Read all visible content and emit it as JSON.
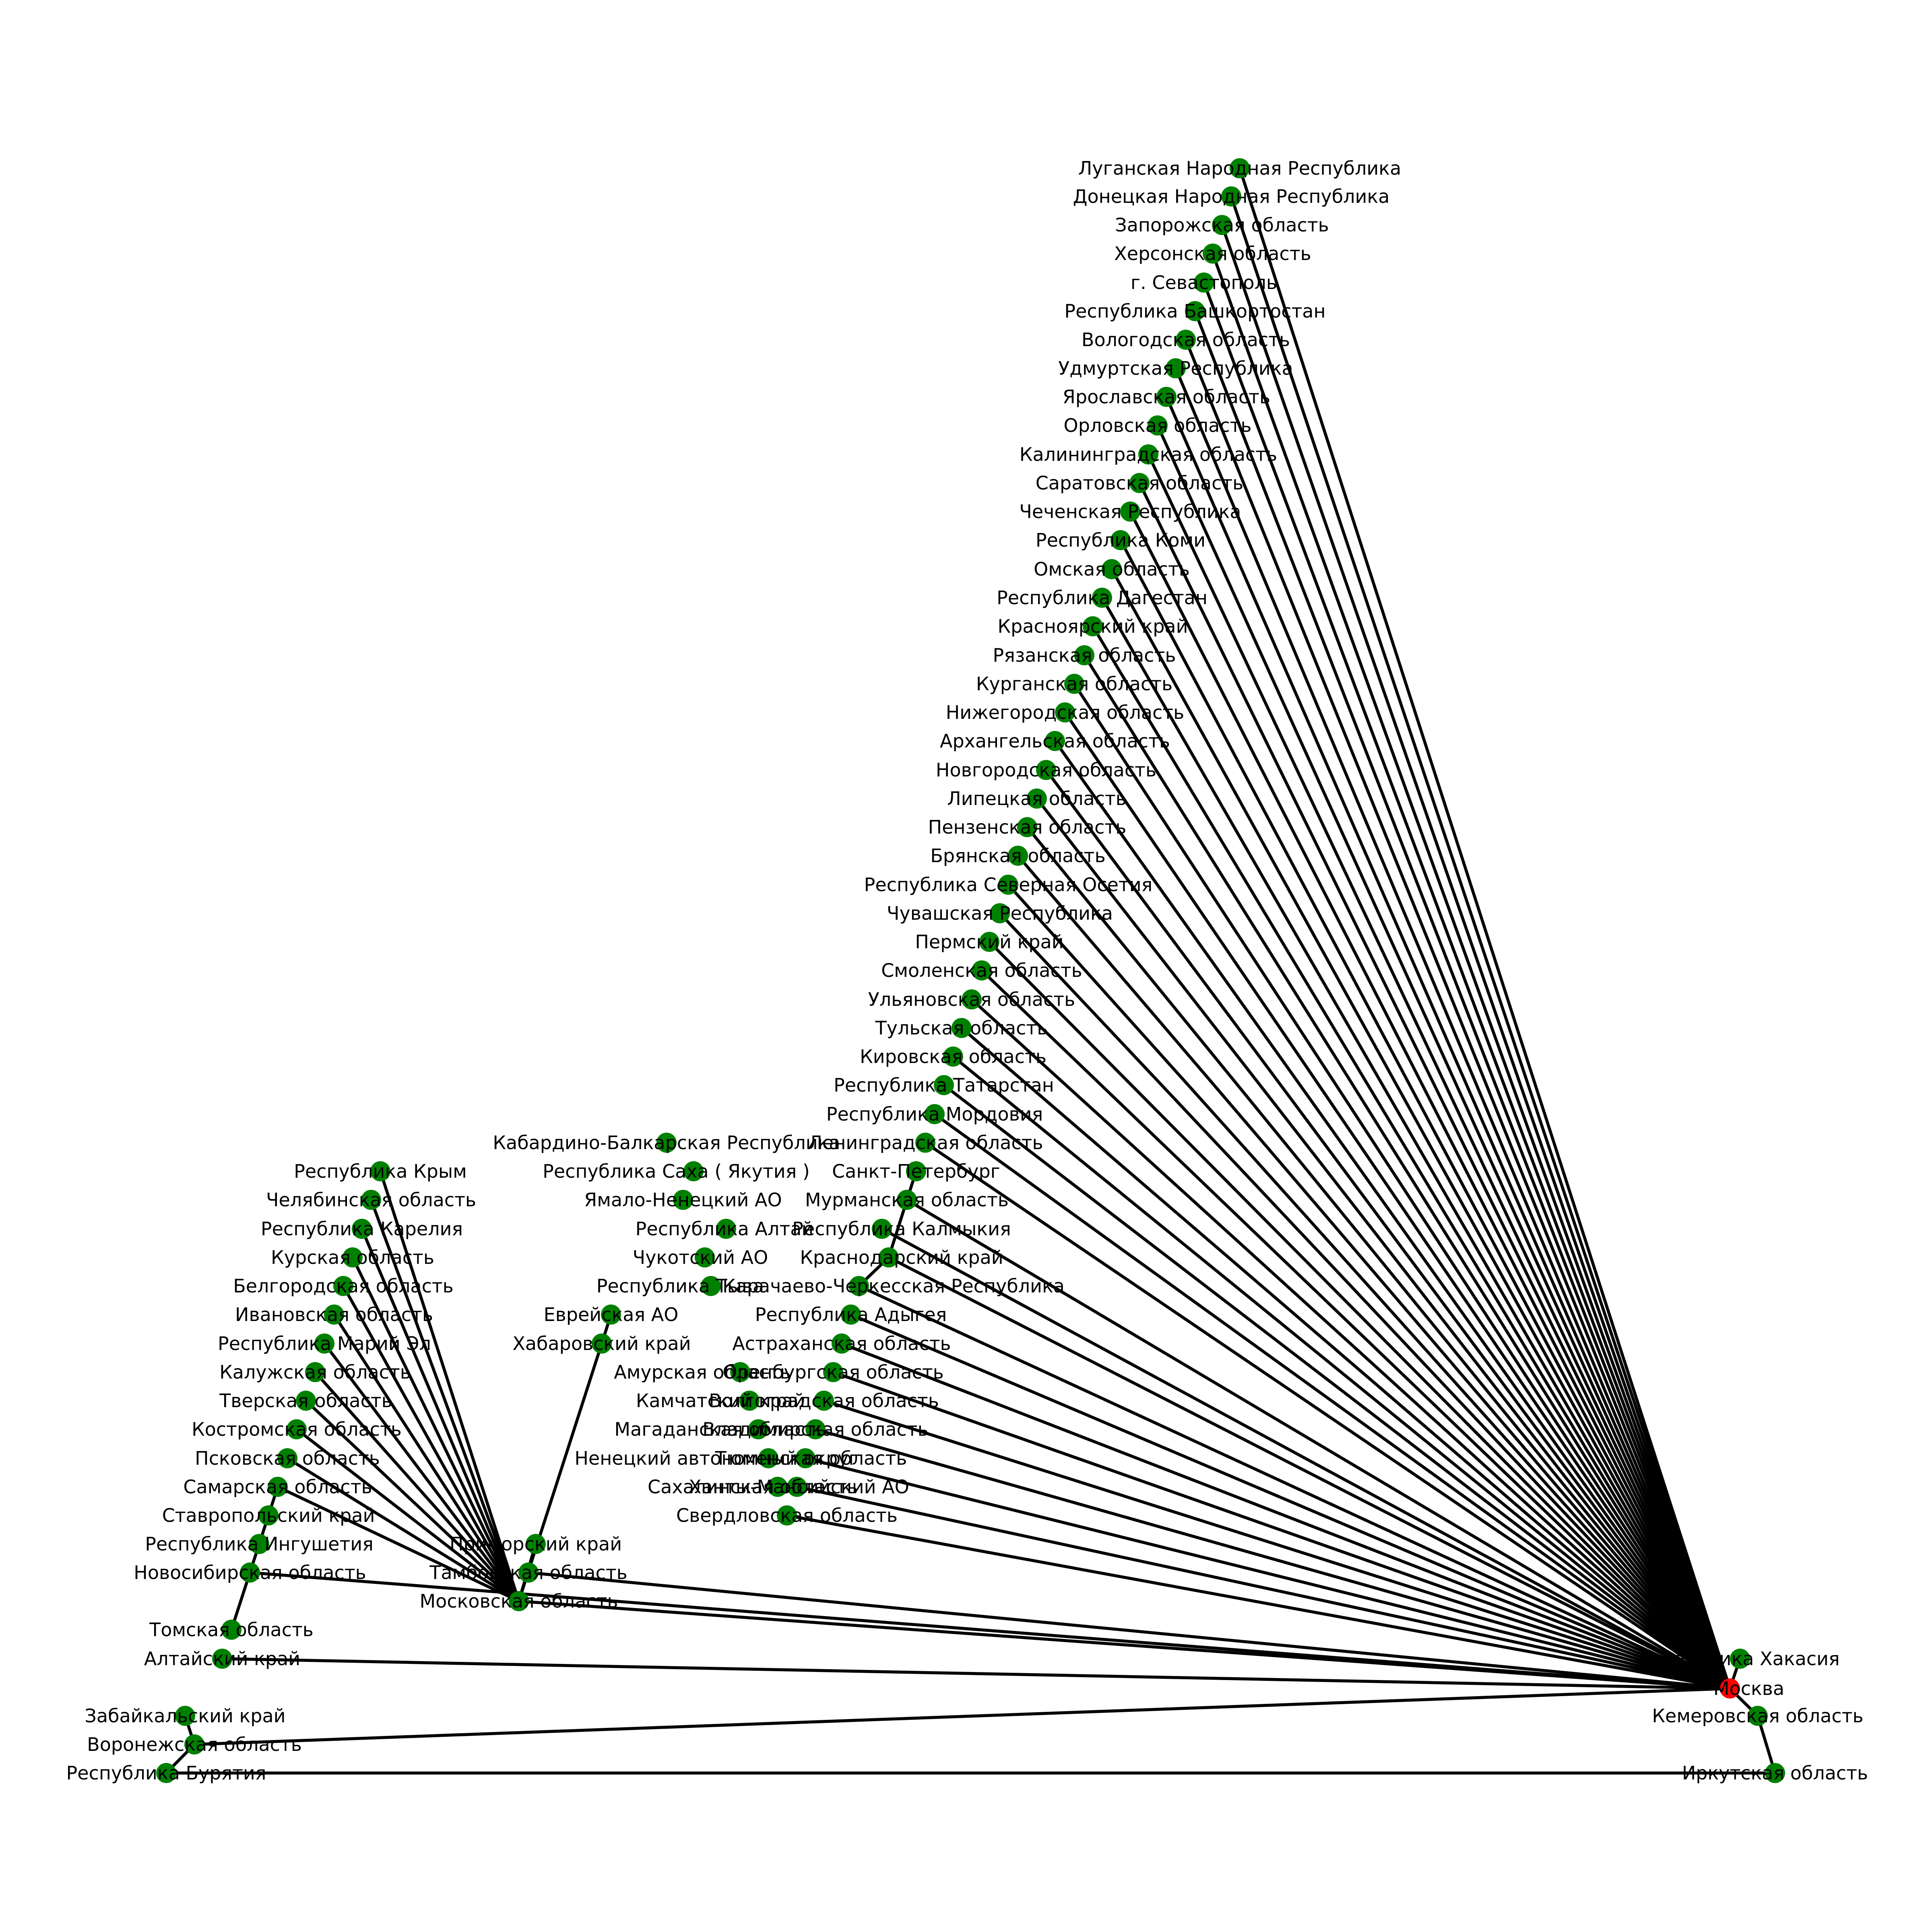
{
  "colors": {
    "root_node": "#ff0000",
    "node": "#008000",
    "edge": "#000000",
    "label": "#000000"
  },
  "graph": {
    "root": "Москва",
    "nodes": [
      {
        "id": "Москва",
        "label": "Москва",
        "root": true
      },
      {
        "id": "Луганская Народная Республика",
        "label": "Луганская Народная Республика"
      },
      {
        "id": "Донецкая Народная Республика",
        "label": "Донецкая Народная Республика"
      },
      {
        "id": "Запорожская область",
        "label": "Запорожская область"
      },
      {
        "id": "Херсонская область",
        "label": "Херсонская область"
      },
      {
        "id": "г. Севастополь",
        "label": "г. Севастополь"
      },
      {
        "id": "Республика Башкортостан",
        "label": "Республика Башкортостан"
      },
      {
        "id": "Вологодская область",
        "label": "Вологодская область"
      },
      {
        "id": "Удмуртская Республика",
        "label": "Удмуртская Республика"
      },
      {
        "id": "Ярославская область",
        "label": "Ярославская область"
      },
      {
        "id": "Орловская область",
        "label": "Орловская область"
      },
      {
        "id": "Калининградская область",
        "label": "Калининградская область"
      },
      {
        "id": "Саратовская область",
        "label": "Саратовская область"
      },
      {
        "id": "Чеченская Республика",
        "label": "Чеченская Республика"
      },
      {
        "id": "Республика Коми",
        "label": "Республика Коми"
      },
      {
        "id": "Омская область",
        "label": "Омская область"
      },
      {
        "id": "Республика Дагестан",
        "label": "Республика Дагестан"
      },
      {
        "id": "Красноярский край",
        "label": "Красноярский край"
      },
      {
        "id": "Рязанская область",
        "label": "Рязанская область"
      },
      {
        "id": "Курганская область",
        "label": "Курганская область"
      },
      {
        "id": "Нижегородская область",
        "label": "Нижегородская область"
      },
      {
        "id": "Архангельская область",
        "label": "Архангельская область"
      },
      {
        "id": "Новгородская область",
        "label": "Новгородская область"
      },
      {
        "id": "Липецкая область",
        "label": "Липецкая область"
      },
      {
        "id": "Пензенская область",
        "label": "Пензенская область"
      },
      {
        "id": "Брянская область",
        "label": "Брянская область"
      },
      {
        "id": "Республика Северная Осетия",
        "label": "Республика Северная Осетия"
      },
      {
        "id": "Чувашская Республика",
        "label": "Чувашская Республика"
      },
      {
        "id": "Пермский край",
        "label": "Пермский край"
      },
      {
        "id": "Смоленская область",
        "label": "Смоленская область"
      },
      {
        "id": "Ульяновская область",
        "label": "Ульяновская область"
      },
      {
        "id": "Тульская область",
        "label": "Тульская область"
      },
      {
        "id": "Кировская область",
        "label": "Кировская область"
      },
      {
        "id": "Республика Татарстан",
        "label": "Республика Татарстан"
      },
      {
        "id": "Республика Мордовия",
        "label": "Республика Мордовия"
      },
      {
        "id": "Ленинградская область",
        "label": "Ленинградская область"
      },
      {
        "id": "Санкт-Петербург",
        "label": "Санкт-Петербург"
      },
      {
        "id": "Мурманская область",
        "label": "Мурманская область"
      },
      {
        "id": "Республика Калмыкия",
        "label": "Республика Калмыкия"
      },
      {
        "id": "Краснодарский край",
        "label": "Краснодарский край"
      },
      {
        "id": "Карачаево-Черкесская Республика",
        "label": "Карачаево-Черкесская Республика"
      },
      {
        "id": "Республика Адыгея",
        "label": "Республика Адыгея"
      },
      {
        "id": "Астраханская область",
        "label": "Астраханская область"
      },
      {
        "id": "Оренбургская область",
        "label": "Оренбургская область"
      },
      {
        "id": "Волгоградская область",
        "label": "Волгоградская область"
      },
      {
        "id": "Владимирская область",
        "label": "Владимирская область"
      },
      {
        "id": "Тюменская область",
        "label": "Тюменская область"
      },
      {
        "id": "Ханты-Мансийский АО",
        "label": "Ханты-Мансийский АО"
      },
      {
        "id": "Свердловская область",
        "label": "Свердловская область"
      },
      {
        "id": "Кабардино-Балкарская Республика",
        "label": "Кабардино-Балкарская Республика"
      },
      {
        "id": "Республика Саха ( Якутия )",
        "label": "Республика Саха ( Якутия )"
      },
      {
        "id": "Ямало-Ненецкий АО",
        "label": "Ямало-Ненецкий АО"
      },
      {
        "id": "Республика Алтай",
        "label": "Республика Алтай"
      },
      {
        "id": "Чукотский АО",
        "label": "Чукотский АО"
      },
      {
        "id": "Республика Тыва",
        "label": "Республика Тыва"
      },
      {
        "id": "Еврейская АО",
        "label": "Еврейская АО"
      },
      {
        "id": "Хабаровский край",
        "label": "Хабаровский край"
      },
      {
        "id": "Амурская область",
        "label": "Амурская область"
      },
      {
        "id": "Камчатский край",
        "label": "Камчатский край"
      },
      {
        "id": "Магаданская область",
        "label": "Магаданская область"
      },
      {
        "id": "Ненецкий автономный округ",
        "label": "Ненецкий автономный округ"
      },
      {
        "id": "Сахалинская область",
        "label": "Сахалинская область"
      },
      {
        "id": "Приморский край",
        "label": "Приморский край"
      },
      {
        "id": "Тамбовская область",
        "label": "Тамбовская область"
      },
      {
        "id": "Московская область",
        "label": "Московская область"
      },
      {
        "id": "Республика Крым",
        "label": "Республика Крым"
      },
      {
        "id": "Челябинская область",
        "label": "Челябинская область"
      },
      {
        "id": "Республика Карелия",
        "label": "Республика Карелия"
      },
      {
        "id": "Курская область",
        "label": "Курская область"
      },
      {
        "id": "Белгородская область",
        "label": "Белгородская область"
      },
      {
        "id": "Ивановская область",
        "label": "Ивановская область"
      },
      {
        "id": "Республика Марий Эл",
        "label": "Республика Марий Эл"
      },
      {
        "id": "Калужская область",
        "label": "Калужская область"
      },
      {
        "id": "Тверская область",
        "label": "Тверская область"
      },
      {
        "id": "Костромская область",
        "label": "Костромская область"
      },
      {
        "id": "Псковская область",
        "label": "Псковская область"
      },
      {
        "id": "Самарская область",
        "label": "Самарская область"
      },
      {
        "id": "Ставропольский край",
        "label": "Ставропольский край"
      },
      {
        "id": "Республика Ингушетия",
        "label": "Республика Ингушетия"
      },
      {
        "id": "Новосибирская область",
        "label": "Новосибирская область"
      },
      {
        "id": "Томская область",
        "label": "Томская область"
      },
      {
        "id": "Алтайский край",
        "label": "Алтайский край"
      },
      {
        "id": "Забайкальский край",
        "label": "Забайкальский край"
      },
      {
        "id": "Воронежская область",
        "label": "Воронежская область"
      },
      {
        "id": "Республика Бурятия",
        "label": "Республика Бурятия"
      },
      {
        "id": "Республика Хакасия",
        "label": "Республика Хакасия"
      },
      {
        "id": "Кемеровская область",
        "label": "Кемеровская область"
      },
      {
        "id": "Иркутская область",
        "label": "Иркутская область"
      }
    ],
    "edges": [
      [
        "Москва",
        "Луганская Народная Республика"
      ],
      [
        "Москва",
        "Донецкая Народная Республика"
      ],
      [
        "Москва",
        "Запорожская область"
      ],
      [
        "Москва",
        "Херсонская область"
      ],
      [
        "Москва",
        "г. Севастополь"
      ],
      [
        "Москва",
        "Республика Башкортостан"
      ],
      [
        "Москва",
        "Вологодская область"
      ],
      [
        "Москва",
        "Удмуртская Республика"
      ],
      [
        "Москва",
        "Ярославская область"
      ],
      [
        "Москва",
        "Орловская область"
      ],
      [
        "Москва",
        "Калининградская область"
      ],
      [
        "Москва",
        "Саратовская область"
      ],
      [
        "Москва",
        "Чеченская Республика"
      ],
      [
        "Москва",
        "Республика Коми"
      ],
      [
        "Москва",
        "Омская область"
      ],
      [
        "Москва",
        "Республика Дагестан"
      ],
      [
        "Москва",
        "Красноярский край"
      ],
      [
        "Москва",
        "Рязанская область"
      ],
      [
        "Москва",
        "Курганская область"
      ],
      [
        "Москва",
        "Нижегородская область"
      ],
      [
        "Москва",
        "Архангельская область"
      ],
      [
        "Москва",
        "Новгородская область"
      ],
      [
        "Москва",
        "Липецкая область"
      ],
      [
        "Москва",
        "Пензенская область"
      ],
      [
        "Москва",
        "Брянская область"
      ],
      [
        "Москва",
        "Республика Северная Осетия"
      ],
      [
        "Москва",
        "Чувашская Республика"
      ],
      [
        "Москва",
        "Пермский край"
      ],
      [
        "Москва",
        "Смоленская область"
      ],
      [
        "Москва",
        "Ульяновская область"
      ],
      [
        "Москва",
        "Тульская область"
      ],
      [
        "Москва",
        "Кировская область"
      ],
      [
        "Москва",
        "Республика Татарстан"
      ],
      [
        "Москва",
        "Республика Мордовия"
      ],
      [
        "Москва",
        "Ленинградская область"
      ],
      [
        "Москва",
        "Мурманская область"
      ],
      [
        "Москва",
        "Республика Калмыкия"
      ],
      [
        "Москва",
        "Краснодарский край"
      ],
      [
        "Москва",
        "Карачаево-Черкесская Республика"
      ],
      [
        "Москва",
        "Республика Адыгея"
      ],
      [
        "Москва",
        "Астраханская область"
      ],
      [
        "Москва",
        "Оренбургская область"
      ],
      [
        "Москва",
        "Волгоградская область"
      ],
      [
        "Москва",
        "Владимирская область"
      ],
      [
        "Москва",
        "Тюменская область"
      ],
      [
        "Москва",
        "Ханты-Мансийский АО"
      ],
      [
        "Москва",
        "Свердловская область"
      ],
      [
        "Москва",
        "Московская область"
      ],
      [
        "Москва",
        "Тамбовская область"
      ],
      [
        "Москва",
        "Новосибирская область"
      ],
      [
        "Москва",
        "Алтайский край"
      ],
      [
        "Москва",
        "Воронежская область"
      ],
      [
        "Москва",
        "Республика Хакасия"
      ],
      [
        "Москва",
        "Кемеровская область"
      ],
      [
        "Кемеровская область",
        "Иркутская область"
      ],
      [
        "Иркутская область",
        "Республика Бурятия"
      ],
      [
        "Республика Бурятия",
        "Воронежская область"
      ],
      [
        "Воронежская область",
        "Забайкальский край"
      ],
      [
        "Новосибирская область",
        "Томская область"
      ],
      [
        "Новосибирская область",
        "Республика Ингушетия"
      ],
      [
        "Республика Ингушетия",
        "Ставропольский край"
      ],
      [
        "Ставропольский край",
        "Самарская область"
      ],
      [
        "Московская область",
        "Республика Крым"
      ],
      [
        "Московская область",
        "Челябинская область"
      ],
      [
        "Московская область",
        "Республика Карелия"
      ],
      [
        "Московская область",
        "Курская область"
      ],
      [
        "Московская область",
        "Белгородская область"
      ],
      [
        "Московская область",
        "Ивановская область"
      ],
      [
        "Московская область",
        "Республика Марий Эл"
      ],
      [
        "Московская область",
        "Калужская область"
      ],
      [
        "Московская область",
        "Тверская область"
      ],
      [
        "Московская область",
        "Костромская область"
      ],
      [
        "Московская область",
        "Псковская область"
      ],
      [
        "Московская область",
        "Самарская область"
      ],
      [
        "Московская область",
        "Приморский край"
      ],
      [
        "Московская область",
        "Хабаровский край"
      ],
      [
        "Хабаровский край",
        "Еврейская АО"
      ],
      [
        "Краснодарский край",
        "Санкт-Петербург"
      ],
      [
        "Краснодарский край",
        "Карачаево-Черкесская Республика"
      ]
    ]
  }
}
